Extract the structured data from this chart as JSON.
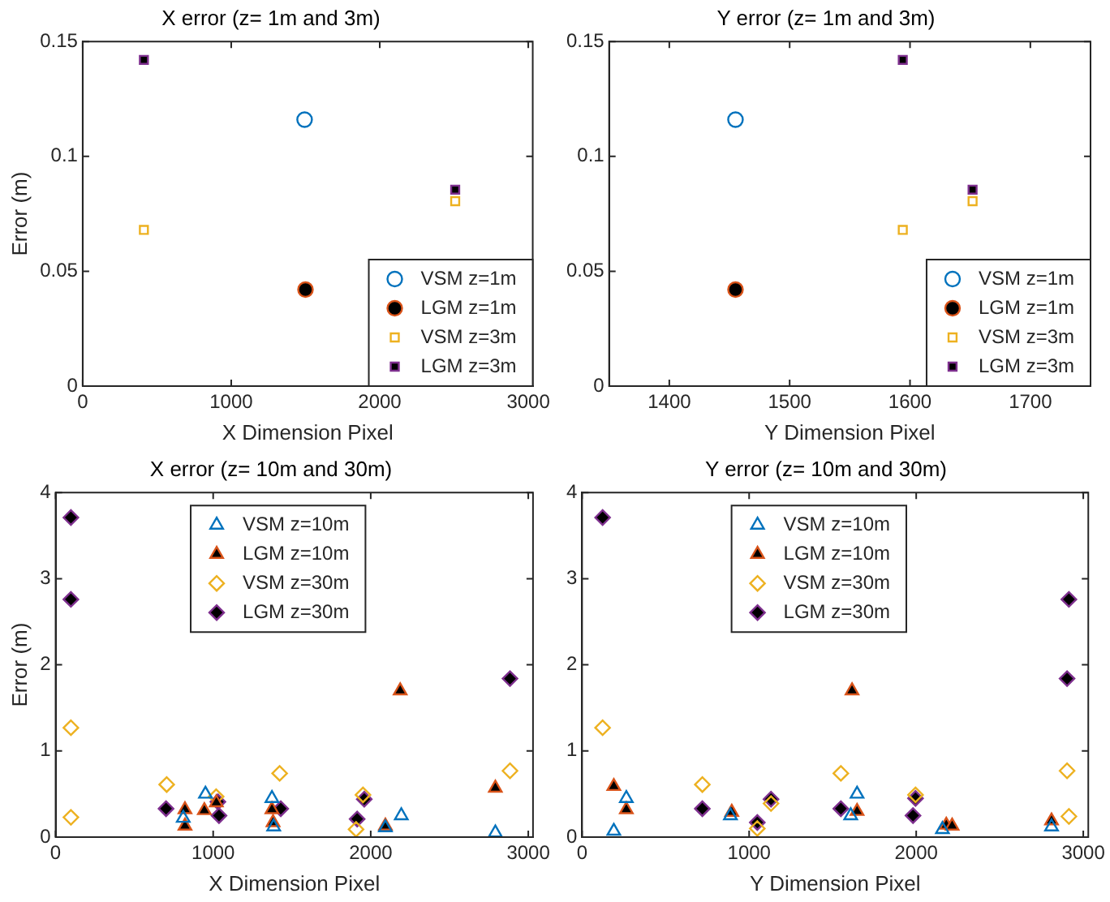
{
  "chart_data": [
    {
      "type": "scatter",
      "title": "X error (z= 1m and 3m)",
      "xlabel": "X Dimension Pixel",
      "ylabel": "Error (m)",
      "xlim": [
        0,
        3030
      ],
      "xticks": [
        0,
        1000,
        2000,
        3000
      ],
      "ylim": [
        0,
        0.15
      ],
      "yticks": [
        0,
        0.05,
        0.1,
        0.15
      ],
      "grid": false,
      "legend": "bottom right",
      "series": [
        {
          "name": "VSM z=1m",
          "color": "#0072bd",
          "marker": "circle",
          "x": [
            1494
          ],
          "values": [
            0.116
          ]
        },
        {
          "name": "LGM z=1m",
          "color": "#d95319",
          "colors": [
            "#000000"
          ],
          "marker": "circle",
          "x": [
            1500
          ],
          "values": [
            0.042
          ]
        },
        {
          "name": "VSM z=3m",
          "color": "#edb120",
          "marker": "square",
          "x": [
            412,
            2508
          ],
          "values": [
            0.068,
            0.0805
          ]
        },
        {
          "name": "LGM z=3m",
          "color": "#7e2f8e",
          "colors": [
            "#000000",
            "#000000"
          ],
          "marker": "square",
          "x": [
            412,
            2508
          ],
          "values": [
            0.142,
            0.0855
          ]
        }
      ]
    },
    {
      "type": "scatter",
      "title": "Y error (z= 1m and 3m)",
      "xlabel": "Y Dimension Pixel",
      "xlim": [
        1350,
        1750
      ],
      "xticks": [
        1400,
        1500,
        1600,
        1700
      ],
      "ylim": [
        0,
        0.15
      ],
      "yticks": [
        0,
        0.05,
        0.1,
        0.15
      ],
      "grid": false,
      "legend": "bottom right",
      "series": [
        {
          "name": "VSM z=1m",
          "color": "#0072bd",
          "marker": "circle",
          "x": [
            1455
          ],
          "values": [
            0.116
          ]
        },
        {
          "name": "LGM z=1m",
          "color": "#d95319",
          "colors": [
            "#000000"
          ],
          "marker": "circle",
          "x": [
            1455
          ],
          "values": [
            0.042
          ]
        },
        {
          "name": "VSM z=3m",
          "color": "#edb120",
          "marker": "square",
          "x": [
            1594,
            1652
          ],
          "values": [
            0.068,
            0.0805
          ]
        },
        {
          "name": "LGM z=3m",
          "color": "#7e2f8e",
          "colors": [
            "#000000",
            "#000000"
          ],
          "marker": "square",
          "x": [
            1594,
            1652
          ],
          "values": [
            0.142,
            0.0855
          ]
        }
      ]
    },
    {
      "type": "scatter",
      "title": "X error (z= 10m and 30m)",
      "xlabel": "X Dimension Pixel",
      "ylabel": "Error (m)",
      "xlim": [
        0,
        3030
      ],
      "xticks": [
        0,
        1000,
        2000,
        3000
      ],
      "ylim": [
        0,
        4
      ],
      "yticks": [
        0,
        1,
        2,
        3,
        4
      ],
      "grid": false,
      "legend": "top",
      "series": [
        {
          "name": "VSM z=10m",
          "color": "#0072bd",
          "marker": "triangle",
          "x": [
            810,
            951,
            1373,
            1384,
            2093,
            2194,
            2791
          ],
          "values": [
            0.22,
            0.5,
            0.45,
            0.12,
            0.11,
            0.25,
            0.05
          ]
        },
        {
          "name": "LGM z=10m",
          "color": "#d95319",
          "colors": [
            "#000000",
            "#000000",
            "#000000",
            "#000000",
            "#000000",
            "#000000",
            "#000000",
            "#000000",
            "#000000"
          ],
          "marker": "triangle",
          "x": [
            821,
            821,
            944,
            1020,
            1373,
            1380,
            2093,
            2187,
            2791
          ],
          "values": [
            0.32,
            0.13,
            0.31,
            0.4,
            0.32,
            0.17,
            0.13,
            1.7,
            0.57
          ]
        },
        {
          "name": "VSM z=30m",
          "color": "#edb120",
          "marker": "diamond",
          "x": [
            97,
            97,
            705,
            1019,
            1422,
            1907,
            1951,
            2884
          ],
          "values": [
            1.27,
            0.23,
            0.61,
            0.47,
            0.74,
            0.09,
            0.49,
            0.77
          ]
        },
        {
          "name": "LGM z=30m",
          "color": "#7e2f8e",
          "colors": [
            "#000000",
            "#000000",
            "#000000",
            "#000000",
            "#000000",
            "#000000",
            "#000000",
            "#000000",
            "#000000"
          ],
          "marker": "diamond",
          "x": [
            97,
            97,
            701,
            1030,
            1037,
            1429,
            1914,
            1959,
            2884
          ],
          "values": [
            3.71,
            2.76,
            0.33,
            0.41,
            0.25,
            0.33,
            0.21,
            0.44,
            1.84
          ]
        }
      ]
    },
    {
      "type": "scatter",
      "title": "Y error (z= 10m and 30m)",
      "xlabel": "Y Dimension Pixel",
      "xlim": [
        0,
        3030
      ],
      "xticks": [
        0,
        1000,
        2000,
        3000
      ],
      "ylim": [
        0,
        4
      ],
      "yticks": [
        0,
        1,
        2,
        3,
        4
      ],
      "grid": false,
      "legend": "top",
      "series": [
        {
          "name": "VSM z=10m",
          "color": "#0072bd",
          "marker": "triangle",
          "x": [
            190,
            265,
            888,
            1608,
            1646,
            2157,
            2810
          ],
          "values": [
            0.07,
            0.45,
            0.25,
            0.25,
            0.5,
            0.09,
            0.12
          ]
        },
        {
          "name": "LGM z=10m",
          "color": "#d95319",
          "colors": [
            "#000000",
            "#000000",
            "#000000",
            "#000000",
            "#000000",
            "#000000",
            "#000000",
            "#000000"
          ],
          "marker": "triangle",
          "x": [
            190,
            265,
            896,
            1616,
            1646,
            2180,
            2215,
            2810
          ],
          "values": [
            0.59,
            0.32,
            0.29,
            1.7,
            0.3,
            0.14,
            0.13,
            0.19
          ]
        },
        {
          "name": "VSM z=30m",
          "color": "#edb120",
          "marker": "diamond",
          "x": [
            123,
            720,
            1049,
            1131,
            1549,
            1996,
            2903,
            2914
          ],
          "values": [
            1.27,
            0.61,
            0.1,
            0.39,
            0.74,
            0.49,
            0.77,
            0.24
          ]
        },
        {
          "name": "LGM z=30m",
          "color": "#7e2f8e",
          "colors": [
            "#000000",
            "#000000",
            "#000000",
            "#000000",
            "#000000",
            "#000000",
            "#000000",
            "#000000",
            "#000000"
          ],
          "marker": "diamond",
          "x": [
            123,
            720,
            1049,
            1131,
            1549,
            1981,
            1996,
            2903,
            2914
          ],
          "values": [
            3.71,
            0.33,
            0.17,
            0.44,
            0.33,
            0.25,
            0.45,
            1.84,
            2.76
          ]
        }
      ]
    }
  ]
}
